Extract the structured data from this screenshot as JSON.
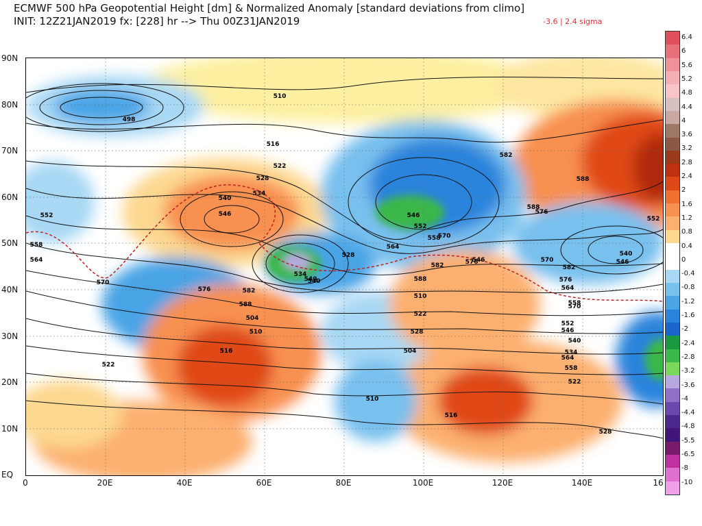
{
  "header": {
    "title_line1": "ECMWF 500 hPa Geopotential Height [dm] & Normalized Anomaly [standard deviations from climo]",
    "title_line2": "INIT: 12Z21JAN2019 fx: [228] hr --> Thu 00Z31JAN2019",
    "anomaly_range": "-3.6 | 2.4 sigma",
    "range_color": "#e03030"
  },
  "map": {
    "lon_labels": [
      "0",
      "20E",
      "40E",
      "60E",
      "80E",
      "100E",
      "120E",
      "140E",
      "16"
    ],
    "lat_labels": [
      "90N",
      "80N",
      "70N",
      "60N",
      "50N",
      "40N",
      "30N",
      "20N",
      "10N",
      "EQ"
    ],
    "contour_labels": [
      "498",
      "510",
      "516",
      "522",
      "528",
      "534",
      "540",
      "546",
      "552",
      "558",
      "564",
      "570",
      "576",
      "582",
      "588",
      "504",
      "510",
      "516",
      "522",
      "528",
      "534",
      "540",
      "546",
      "552",
      "558",
      "564",
      "570",
      "576",
      "582",
      "588",
      "510",
      "522",
      "528",
      "504",
      "510",
      "516",
      "522",
      "528",
      "534",
      "540",
      "546",
      "552",
      "558",
      "564",
      "570",
      "576",
      "582",
      "588",
      "588",
      "546",
      "540",
      "582",
      "576",
      "570",
      "564",
      "558",
      "552",
      "546",
      "540"
    ]
  },
  "colorbar": {
    "labels": [
      "6.4",
      "6",
      "5.6",
      "5.2",
      "4.8",
      "4.4",
      "4",
      "3.6",
      "3.2",
      "2.8",
      "2.4",
      "2",
      "1.6",
      "1.2",
      "0.8",
      "0.4",
      "0",
      "-0.4",
      "-0.8",
      "-1.2",
      "-1.6",
      "-2",
      "-2.4",
      "-2.8",
      "-3.2",
      "-3.6",
      "-4",
      "-4.4",
      "-4.8",
      "-5.5",
      "-6.5",
      "-8",
      "-10"
    ],
    "colors": [
      "#e0505a",
      "#e8707a",
      "#f09098",
      "#f4aeb4",
      "#f8c4c8",
      "#d8c0c0",
      "#c8a8a0",
      "#a07868",
      "#8a5844",
      "#9a3a1a",
      "#c03010",
      "#e04818",
      "#f07030",
      "#f89050",
      "#fcb070",
      "#fdd890",
      "#ffffff",
      "#ffffff",
      "#a8d8f4",
      "#78c0ee",
      "#4aa4e6",
      "#2a84dc",
      "#1a64d0",
      "#1a9a40",
      "#3ab848",
      "#7ad85a",
      "#b8a8e0",
      "#9070c8",
      "#6a48b0",
      "#4a2890",
      "#40157c",
      "#7a1a6a",
      "#c030a0",
      "#e070d0",
      "#f0a0e8"
    ]
  }
}
